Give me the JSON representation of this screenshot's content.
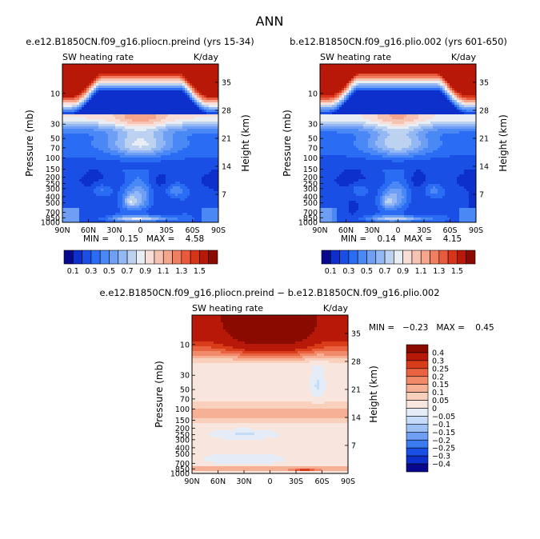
{
  "page_title": "ANN",
  "chart_data": [
    {
      "type": "heatmap",
      "title": "e.e12.B1850CN.f09_g16.pliocn.preind (yrs 15-34)",
      "subtitle_left": "SW heating rate",
      "subtitle_right": "K/day",
      "ylabel": "Pressure (mb)",
      "ylabel_right": "Height (km)",
      "x_ticks": [
        "90N",
        "60N",
        "30N",
        "0",
        "30S",
        "60S",
        "90S"
      ],
      "y_ticks": [
        "10",
        "30",
        "50",
        "70",
        "100",
        "150",
        "200",
        "250",
        "300",
        "400",
        "500",
        "700",
        "850",
        "1000"
      ],
      "y2_ticks": [
        "35",
        "28",
        "21",
        "14",
        "7"
      ],
      "stats": "MIN =    0.15   MAX =    4.58",
      "legend_labels": [
        "0.1",
        "0.3",
        "0.5",
        "0.7",
        "0.9",
        "1.1",
        "1.3",
        "1.5"
      ],
      "levels": [
        0.1,
        0.2,
        0.3,
        0.4,
        0.5,
        0.6,
        0.7,
        0.8,
        0.9,
        1.0,
        1.1,
        1.2,
        1.3,
        1.4,
        1.5
      ],
      "colors": [
        "#08088c",
        "#0d2fcc",
        "#1a4fe6",
        "#2a6cf4",
        "#4a88f5",
        "#6e9ff5",
        "#94b8f3",
        "#bcd2f0",
        "#e9eef4",
        "#f8ded6",
        "#f6c3b3",
        "#f4a58c",
        "#f07f61",
        "#e95a3c",
        "#d83417",
        "#b81807",
        "#8b0a00"
      ]
    },
    {
      "type": "heatmap",
      "title": "b.e12.B1850CN.f09_g16.plio.002 (yrs 601-650)",
      "subtitle_left": "SW heating rate",
      "subtitle_right": "K/day",
      "ylabel": "Pressure (mb)",
      "ylabel_right": "Height (km)",
      "x_ticks": [
        "90N",
        "60N",
        "30N",
        "0",
        "30S",
        "60S",
        "90S"
      ],
      "y_ticks": [
        "10",
        "30",
        "50",
        "70",
        "100",
        "150",
        "200",
        "250",
        "300",
        "400",
        "500",
        "700",
        "850",
        "1000"
      ],
      "y2_ticks": [
        "35",
        "28",
        "21",
        "14",
        "7"
      ],
      "stats": "MIN =    0.14   MAX =    4.15",
      "legend_labels": [
        "0.1",
        "0.3",
        "0.5",
        "0.7",
        "0.9",
        "1.1",
        "1.3",
        "1.5"
      ],
      "levels": [
        0.1,
        0.2,
        0.3,
        0.4,
        0.5,
        0.6,
        0.7,
        0.8,
        0.9,
        1.0,
        1.1,
        1.2,
        1.3,
        1.4,
        1.5
      ],
      "colors": [
        "#08088c",
        "#0d2fcc",
        "#1a4fe6",
        "#2a6cf4",
        "#4a88f5",
        "#6e9ff5",
        "#94b8f3",
        "#bcd2f0",
        "#e9eef4",
        "#f8ded6",
        "#f6c3b3",
        "#f4a58c",
        "#f07f61",
        "#e95a3c",
        "#d83417",
        "#b81807",
        "#8b0a00"
      ]
    },
    {
      "type": "heatmap",
      "title": "e.e12.B1850CN.f09_g16.pliocn.preind − b.e12.B1850CN.f09_g16.plio.002",
      "subtitle_left": "SW heating rate",
      "subtitle_right": "K/day",
      "ylabel": "Pressure (mb)",
      "ylabel_right": "Height (km)",
      "x_ticks": [
        "90N",
        "60N",
        "30N",
        "0",
        "30S",
        "60S",
        "90S"
      ],
      "y_ticks": [
        "10",
        "30",
        "50",
        "70",
        "100",
        "150",
        "200",
        "250",
        "300",
        "400",
        "500",
        "700",
        "850",
        "1000"
      ],
      "y2_ticks": [
        "35",
        "28",
        "21",
        "14",
        "7"
      ],
      "stats": "MIN =   −0.23   MAX =    0.45",
      "legend_labels": [
        "0.4",
        "0.3",
        "0.25",
        "0.2",
        "0.15",
        "0.1",
        "0.05",
        "0",
        "−0.05",
        "−0.1",
        "−0.15",
        "−0.2",
        "−0.25",
        "−0.3",
        "−0.4"
      ],
      "levels": [
        -0.4,
        -0.3,
        -0.25,
        -0.2,
        -0.15,
        -0.1,
        -0.05,
        0,
        0.05,
        0.1,
        0.15,
        0.2,
        0.25,
        0.3,
        0.4
      ],
      "colors": [
        "#08088c",
        "#0d2fcc",
        "#1a4fe6",
        "#3b7bf0",
        "#6e9ff5",
        "#9dc0f5",
        "#c6dbf7",
        "#e4edf7",
        "#f8e6de",
        "#f9d0bc",
        "#f6b095",
        "#f08a68",
        "#e96340",
        "#d83c18",
        "#b81807",
        "#8b0a00"
      ]
    }
  ]
}
